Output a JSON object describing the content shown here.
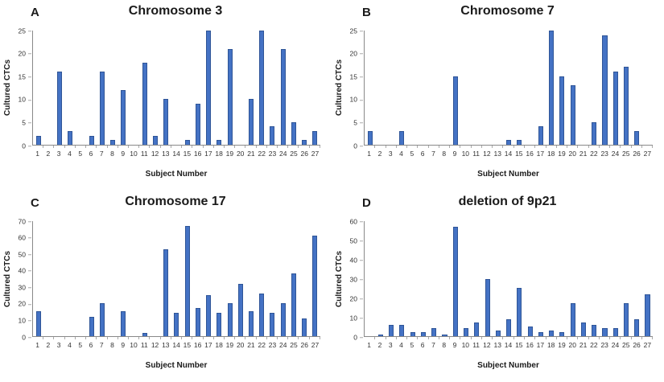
{
  "colors": {
    "bar_fill": "#4472C4",
    "bar_border": "#2F5597",
    "axis_line": "#898989",
    "tick_text": "#333333",
    "title_text": "#1a1a1a",
    "background": "#ffffff"
  },
  "chart_data": [
    {
      "panel_label": "A",
      "type": "bar",
      "title": "Chromosome 3",
      "xlabel": "Subject Number",
      "ylabel": "Cultured CTCs",
      "ylim": [
        0,
        25
      ],
      "ytick_step": 5,
      "grid": false,
      "legend": false,
      "categories": [
        "1",
        "2",
        "3",
        "4",
        "5",
        "6",
        "7",
        "8",
        "9",
        "10",
        "11",
        "12",
        "13",
        "14",
        "15",
        "16",
        "17",
        "18",
        "19",
        "20",
        "21",
        "22",
        "23",
        "24",
        "25",
        "26",
        "27"
      ],
      "values": [
        2,
        0,
        16,
        3,
        0,
        2,
        16,
        1,
        12,
        0,
        18,
        2,
        10,
        0,
        1,
        9,
        25,
        1,
        21,
        0,
        10,
        25,
        4,
        21,
        5,
        1,
        3
      ]
    },
    {
      "panel_label": "B",
      "type": "bar",
      "title": "Chromosome 7",
      "xlabel": "Subject Number",
      "ylabel": "Cultured CTCs",
      "ylim": [
        0,
        25
      ],
      "ytick_step": 5,
      "grid": false,
      "legend": false,
      "categories": [
        "1",
        "2",
        "3",
        "4",
        "5",
        "6",
        "7",
        "8",
        "9",
        "10",
        "11",
        "12",
        "13",
        "14",
        "15",
        "16",
        "17",
        "18",
        "19",
        "20",
        "21",
        "22",
        "23",
        "24",
        "25",
        "26",
        "27"
      ],
      "values": [
        3,
        0,
        0,
        3,
        0,
        0,
        0,
        0,
        15,
        0,
        0,
        0,
        0,
        1,
        1,
        0,
        4,
        25,
        15,
        13,
        0,
        5,
        24,
        16,
        17,
        3,
        0
      ]
    },
    {
      "panel_label": "C",
      "type": "bar",
      "title": "Chromosome 17",
      "xlabel": "Subject Number",
      "ylabel": "Cultured CTCs",
      "ylim": [
        0,
        70
      ],
      "ytick_step": 10,
      "grid": false,
      "legend": false,
      "categories": [
        "1",
        "2",
        "3",
        "4",
        "5",
        "6",
        "7",
        "8",
        "9",
        "10",
        "11",
        "12",
        "13",
        "14",
        "15",
        "16",
        "17",
        "18",
        "19",
        "20",
        "21",
        "22",
        "23",
        "24",
        "25",
        "26",
        "27"
      ],
      "values": [
        15,
        0,
        0,
        0,
        0,
        12,
        20,
        0,
        15,
        0,
        2,
        0,
        53,
        14,
        67,
        17,
        25,
        14,
        20,
        32,
        15,
        26,
        14,
        20,
        38,
        11,
        61
      ]
    },
    {
      "panel_label": "D",
      "type": "bar",
      "title": "deletion of 9p21",
      "xlabel": "Subject Number",
      "ylabel": "Cultured CTCs",
      "ylim": [
        0,
        60
      ],
      "ytick_step": 10,
      "grid": false,
      "legend": false,
      "categories": [
        "1",
        "2",
        "3",
        "4",
        "5",
        "6",
        "7",
        "8",
        "9",
        "10",
        "11",
        "12",
        "13",
        "14",
        "15",
        "16",
        "17",
        "18",
        "19",
        "20",
        "21",
        "22",
        "23",
        "24",
        "25",
        "26",
        "27"
      ],
      "values": [
        0,
        1,
        6,
        6,
        2,
        2,
        4,
        1,
        57,
        4,
        7,
        30,
        3,
        9,
        25,
        5,
        2,
        3,
        2,
        17,
        7,
        6,
        4,
        4,
        17,
        9,
        22
      ]
    }
  ]
}
